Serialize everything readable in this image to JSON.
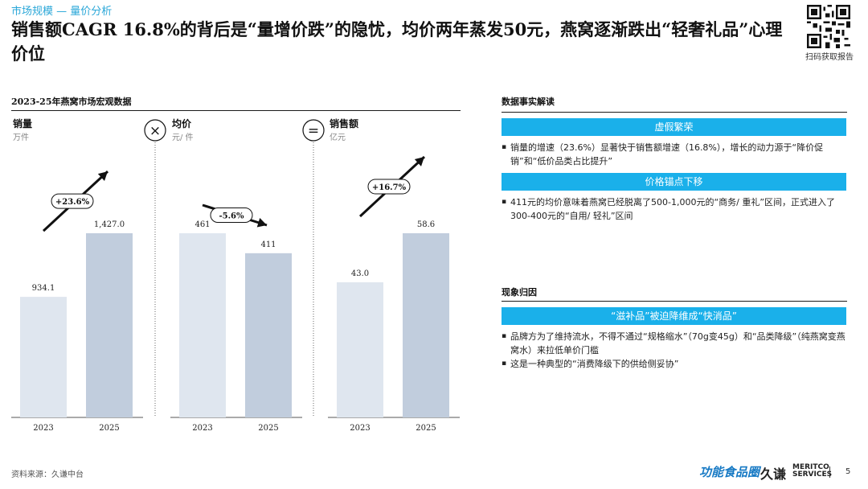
{
  "breadcrumb": "市场规模 — 量价分析",
  "title": "销售额CAGR 16.8%的背后是“量增价跌”的隐忧，均价两年蒸发50元，燕窝逐渐跌出“轻奢礼品”心理价位",
  "qr_label": "扫码获取报告",
  "left_section_title": "2023-25年燕窝市场宏观数据",
  "chart_data": {
    "type": "bar",
    "title": "2023-25年燕窝市场宏观数据",
    "categories": [
      "2023",
      "2025"
    ],
    "series_color_2023": "#dfe6ef",
    "series_color_2025": "#c1cddd",
    "panels": [
      {
        "name": "销量",
        "unit": "万件",
        "values": [
          934.1,
          1427.0
        ],
        "labels": [
          "934.1",
          "1,427.0"
        ],
        "change": "+23.6%",
        "direction": "up",
        "ylim": [
          0,
          1500
        ]
      },
      {
        "name": "均价",
        "unit": "元/ 件",
        "values": [
          461,
          411
        ],
        "labels": [
          "461",
          "411"
        ],
        "change": "-5.6%",
        "direction": "down",
        "ylim": [
          0,
          470
        ]
      },
      {
        "name": "销售额",
        "unit": "亿元",
        "values": [
          43.0,
          58.6
        ],
        "labels": [
          "43.0",
          "58.6"
        ],
        "change": "+16.7%",
        "direction": "up",
        "ylim": [
          0,
          60
        ]
      }
    ],
    "operators": [
      "×",
      "="
    ]
  },
  "right": {
    "section1_title": "数据事实解读",
    "group1_title": "虚假繁荣",
    "group1_bullets": [
      "销量的增速（23.6%）显著快于销售额增速（16.8%），增长的动力源于“降价促销”和“低价品类占比提升”"
    ],
    "group2_title": "价格锚点下移",
    "group2_bullets": [
      "411元的均价意味着燕窝已经脱离了500-1,000元的“商务/ 重礼”区间，正式进入了300-400元的“自用/ 轻礼”区间"
    ],
    "section2_title": "现象归因",
    "group3_title": "“滋补品”被迫降维成“快消品”",
    "group3_bullets": [
      "品牌方为了维持流水，不得不通过“规格缩水”（70g变45g）和“品类降级”（纯燕窝变燕窝水）来拉低单价门槛",
      "这是一种典型的“消费降级下的供给侧妥协”"
    ]
  },
  "footer": {
    "source": "资料来源：久谦中台",
    "logo1": "功能食品圈",
    "logo2": "久谦",
    "logo3_line1": "MERITCO",
    "logo3_line2": "SERVICES",
    "page": "5"
  }
}
